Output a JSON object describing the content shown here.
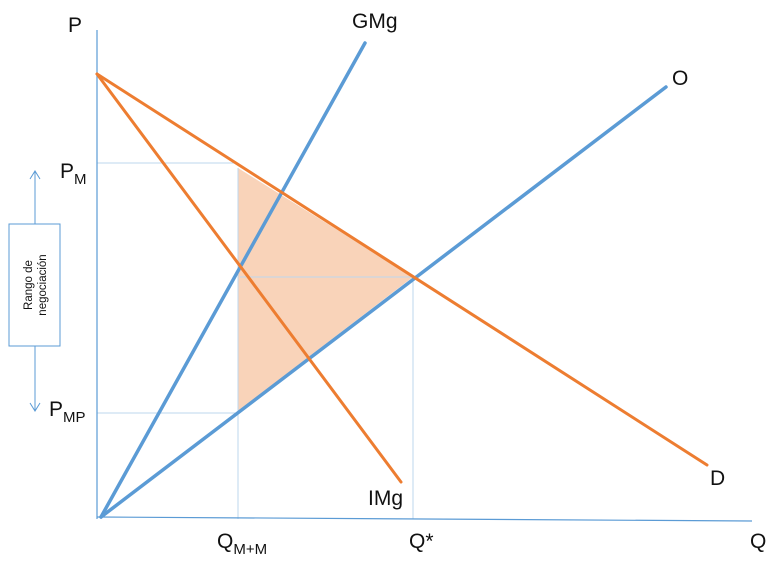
{
  "axes": {
    "y_label": "P",
    "x_label": "Q",
    "color": "#5b9bd5"
  },
  "curves": {
    "gmg": {
      "label": "GMg",
      "color": "#5b9bd5"
    },
    "supply": {
      "label": "O",
      "color": "#5b9bd5"
    },
    "demand": {
      "label": "D",
      "color": "#ed7d31"
    },
    "img": {
      "label": "IMg",
      "color": "#ed7d31"
    }
  },
  "prices": {
    "pm": {
      "base": "P",
      "sub": "M"
    },
    "pmp": {
      "base": "P",
      "sub": "MP"
    }
  },
  "quantities": {
    "qmm": {
      "base": "Q",
      "sub": "M+M"
    },
    "qstar": {
      "label": "Q*"
    }
  },
  "negotiation_range": {
    "line1": "Rango de",
    "line2": "negociación"
  },
  "colors": {
    "shaded_area": "#f8cbad",
    "guides": "#bdd7ee"
  }
}
